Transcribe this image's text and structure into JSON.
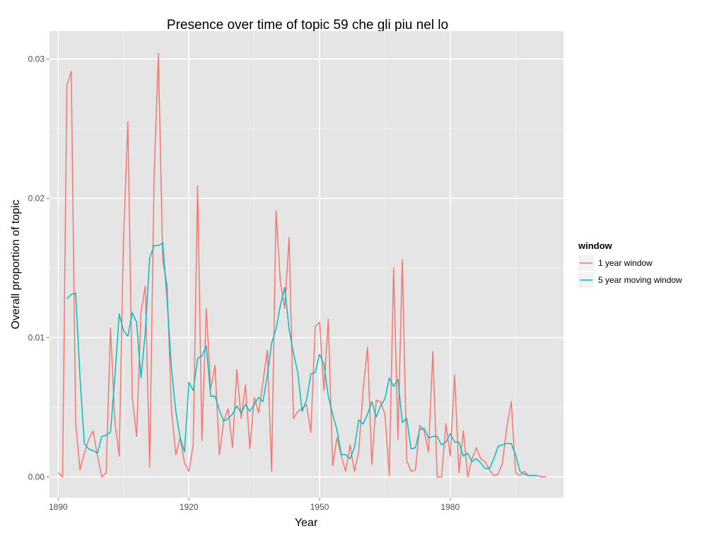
{
  "chart_data": {
    "type": "line",
    "title": "Presence over time of topic 59 che gli piu nel lo",
    "xlabel": "Year",
    "ylabel": "Overall proportion of topic",
    "xlim": [
      1888,
      2006
    ],
    "ylim": [
      -0.0015,
      0.032
    ],
    "x_ticks": [
      1890,
      1920,
      1950,
      1980
    ],
    "x_tick_labels": [
      "1890",
      "1920",
      "1950",
      "1980"
    ],
    "y_ticks": [
      0.0,
      0.01,
      0.02,
      0.03
    ],
    "y_tick_labels": [
      "0.00",
      "0.01",
      "0.02",
      "0.03"
    ],
    "grid": true,
    "legend": {
      "title": "window",
      "position": "right"
    },
    "series": [
      {
        "name": "1 year window",
        "color": "#f8766d",
        "x": [
          1890,
          1891,
          1892,
          1893,
          1894,
          1895,
          1896,
          1897,
          1898,
          1899,
          1900,
          1901,
          1902,
          1903,
          1904,
          1905,
          1906,
          1907,
          1908,
          1909,
          1910,
          1911,
          1912,
          1913,
          1914,
          1915,
          1916,
          1917,
          1918,
          1919,
          1920,
          1921,
          1922,
          1923,
          1924,
          1925,
          1926,
          1927,
          1928,
          1929,
          1930,
          1931,
          1932,
          1933,
          1934,
          1935,
          1936,
          1937,
          1938,
          1939,
          1940,
          1941,
          1942,
          1943,
          1944,
          1945,
          1946,
          1947,
          1948,
          1949,
          1950,
          1951,
          1952,
          1953,
          1954,
          1955,
          1956,
          1957,
          1958,
          1959,
          1960,
          1961,
          1962,
          1963,
          1964,
          1965,
          1966,
          1967,
          1968,
          1969,
          1970,
          1971,
          1972,
          1973,
          1974,
          1975,
          1976,
          1977,
          1978,
          1979,
          1980,
          1981,
          1982,
          1983,
          1984,
          1985,
          1986,
          1987,
          1988,
          1989,
          1990,
          1991,
          1992,
          1993,
          1994,
          1995,
          1996,
          1997,
          1998,
          1999,
          2000,
          2001,
          2002
        ],
        "y": [
          0.0003,
          0.0,
          0.0281,
          0.0291,
          0.0039,
          0.0005,
          0.0017,
          0.0027,
          0.0033,
          0.0015,
          0.0,
          0.0003,
          0.0107,
          0.004,
          0.0015,
          0.0172,
          0.0255,
          0.0057,
          0.0029,
          0.0118,
          0.0137,
          0.0007,
          0.0215,
          0.0304,
          0.0155,
          0.0138,
          0.0048,
          0.0016,
          0.0028,
          0.001,
          0.0004,
          0.0023,
          0.0209,
          0.0026,
          0.0121,
          0.0063,
          0.008,
          0.0016,
          0.004,
          0.0049,
          0.0021,
          0.0077,
          0.0042,
          0.0066,
          0.002,
          0.0057,
          0.0046,
          0.0068,
          0.0091,
          0.0004,
          0.0191,
          0.014,
          0.0121,
          0.0172,
          0.0042,
          0.0047,
          0.0049,
          0.0052,
          0.0032,
          0.0108,
          0.0111,
          0.0062,
          0.0113,
          0.0008,
          0.0028,
          0.0015,
          0.0004,
          0.0023,
          0.0004,
          0.0018,
          0.0063,
          0.0093,
          0.0009,
          0.0055,
          0.0054,
          0.0045,
          0.0001,
          0.015,
          0.0027,
          0.0156,
          0.0012,
          0.0004,
          0.0005,
          0.0037,
          0.0033,
          0.0018,
          0.009,
          0.0,
          0.0,
          0.0038,
          0.0015,
          0.0073,
          0.0003,
          0.0033,
          0.0,
          0.0013,
          0.0021,
          0.0013,
          0.0011,
          0.0005,
          0.0001,
          0.0002,
          0.001,
          0.0036,
          0.0054,
          0.0003,
          0.0001,
          0.0004,
          0.0001,
          0.0001,
          0.0001,
          0.0,
          0.0
        ],
        "x_trim": 2002
      },
      {
        "name": "5 year moving window",
        "color": "#00bfc4",
        "x": [
          1892,
          1893,
          1894,
          1895,
          1896,
          1897,
          1898,
          1899,
          1900,
          1901,
          1902,
          1903,
          1904,
          1905,
          1906,
          1907,
          1908,
          1909,
          1910,
          1911,
          1912,
          1913,
          1914,
          1915,
          1916,
          1917,
          1918,
          1919,
          1920,
          1921,
          1922,
          1923,
          1924,
          1925,
          1926,
          1927,
          1928,
          1929,
          1930,
          1931,
          1932,
          1933,
          1934,
          1935,
          1936,
          1937,
          1938,
          1939,
          1940,
          1941,
          1942,
          1943,
          1944,
          1945,
          1946,
          1947,
          1948,
          1949,
          1950,
          1951,
          1952,
          1953,
          1954,
          1955,
          1956,
          1957,
          1958,
          1959,
          1960,
          1961,
          1962,
          1963,
          1964,
          1965,
          1966,
          1967,
          1968,
          1969,
          1970,
          1971,
          1972,
          1973,
          1974,
          1975,
          1976,
          1977,
          1978,
          1979,
          1980,
          1981,
          1982,
          1983,
          1984,
          1985,
          1986,
          1987,
          1988,
          1989,
          1990,
          1991,
          1992,
          1993,
          1994,
          1995,
          1996,
          1997,
          1998,
          1999,
          2000
        ],
        "y": [
          0.0128,
          0.0131,
          0.0132,
          0.0072,
          0.0024,
          0.002,
          0.0019,
          0.0017,
          0.0029,
          0.003,
          0.0032,
          0.0071,
          0.0117,
          0.0105,
          0.0101,
          0.0118,
          0.0111,
          0.0071,
          0.0104,
          0.0157,
          0.0166,
          0.0166,
          0.0168,
          0.0127,
          0.0078,
          0.0047,
          0.0028,
          0.0018,
          0.0068,
          0.0062,
          0.0085,
          0.0087,
          0.0094,
          0.0058,
          0.0058,
          0.0048,
          0.004,
          0.0042,
          0.0045,
          0.0051,
          0.0046,
          0.0052,
          0.0047,
          0.0052,
          0.0057,
          0.0054,
          0.0073,
          0.0096,
          0.0106,
          0.0123,
          0.0136,
          0.0106,
          0.0089,
          0.0075,
          0.0047,
          0.0055,
          0.0074,
          0.0075,
          0.0088,
          0.0081,
          0.0058,
          0.0045,
          0.0034,
          0.0016,
          0.0016,
          0.0013,
          0.0021,
          0.0041,
          0.0038,
          0.0045,
          0.0054,
          0.0043,
          0.0051,
          0.0056,
          0.0071,
          0.0065,
          0.007,
          0.0039,
          0.0042,
          0.002,
          0.0021,
          0.0034,
          0.0035,
          0.0028,
          0.0029,
          0.0029,
          0.0023,
          0.0025,
          0.0031,
          0.0025,
          0.0025,
          0.0015,
          0.0017,
          0.0011,
          0.0013,
          0.001,
          0.0006,
          0.0006,
          0.0013,
          0.0022,
          0.0023,
          0.0024,
          0.0024,
          0.0016,
          0.0004,
          0.0002,
          0.0001,
          0.0001,
          0.0001
        ]
      }
    ]
  }
}
